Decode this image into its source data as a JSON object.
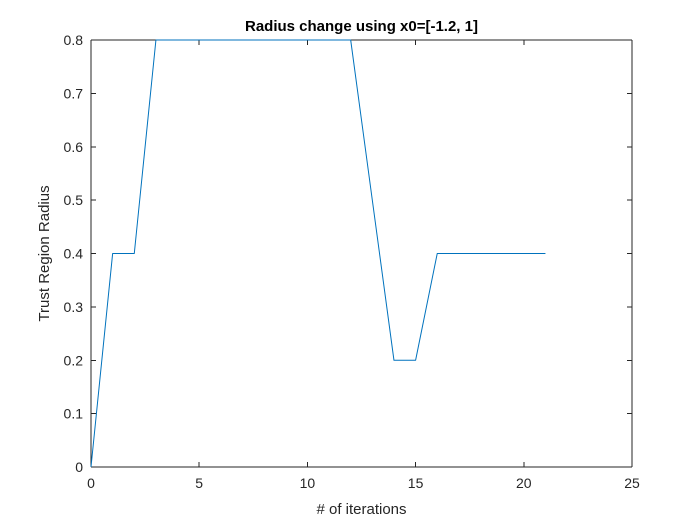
{
  "chart_data": {
    "type": "line",
    "title": "Radius change using x0=[-1.2, 1]",
    "xlabel": "# of iterations",
    "ylabel": "Trust Region Radius",
    "xlim": [
      0,
      25
    ],
    "ylim": [
      0,
      0.8
    ],
    "xticks": [
      0,
      5,
      10,
      15,
      20,
      25
    ],
    "yticks": [
      0,
      0.1,
      0.2,
      0.3,
      0.4,
      0.5,
      0.6,
      0.7,
      0.8
    ],
    "xtick_labels": [
      "0",
      "5",
      "10",
      "15",
      "20",
      "25"
    ],
    "ytick_labels": [
      "0",
      "0.1",
      "0.2",
      "0.3",
      "0.4",
      "0.5",
      "0.6",
      "0.7",
      "0.8"
    ],
    "grid": false,
    "series": [
      {
        "color": "#0072BD",
        "x": [
          0,
          1,
          2,
          3,
          4,
          5,
          6,
          7,
          8,
          9,
          10,
          11,
          12,
          13,
          14,
          15,
          16,
          17,
          18,
          19,
          20,
          21
        ],
        "y": [
          0,
          0.4,
          0.4,
          0.8,
          0.8,
          0.8,
          0.8,
          0.8,
          0.8,
          0.8,
          0.8,
          0.8,
          0.8,
          0.5,
          0.2,
          0.2,
          0.4,
          0.4,
          0.4,
          0.4,
          0.4,
          0.4
        ]
      }
    ]
  }
}
